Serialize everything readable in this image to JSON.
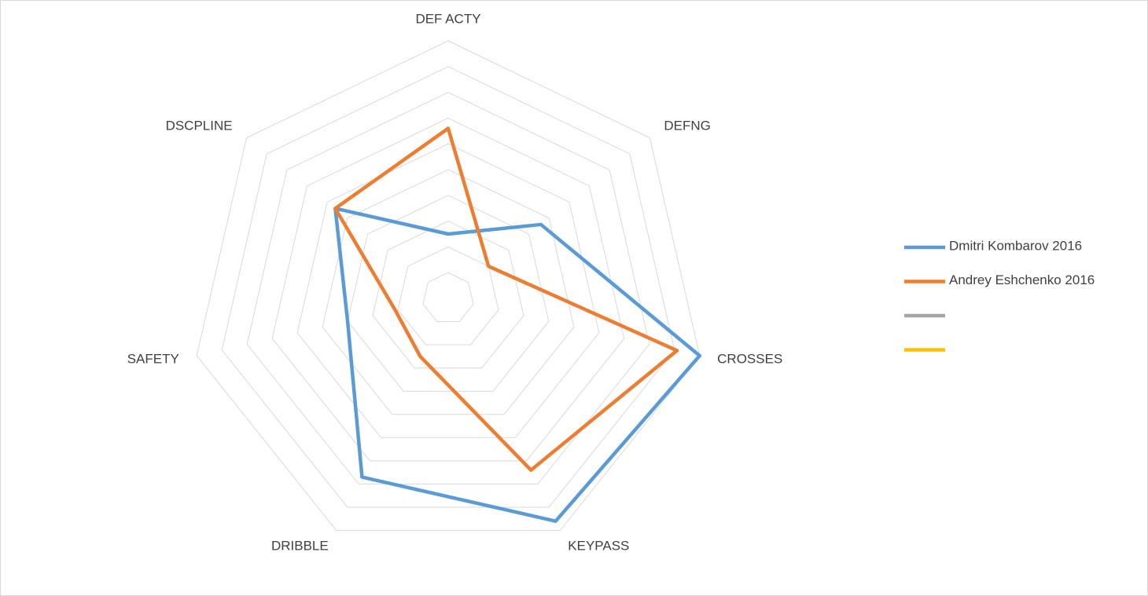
{
  "chart_data": {
    "type": "radar",
    "categories": [
      "DEF ACTY",
      "DEFNG",
      "CROSSES",
      "KEYPASS",
      "DRIBBLE",
      "SAFETY",
      "DSCPLINE"
    ],
    "series": [
      {
        "name": "Dmitri Kombarov 2016",
        "color": "#5b9bd5",
        "values": [
          2.5,
          4.6,
          10,
          9.6,
          7.7,
          4.0,
          5.6
        ]
      },
      {
        "name": "Andrey Eshchenko 2016",
        "color": "#ed7d31",
        "values": [
          6.6,
          2.0,
          9.1,
          7.4,
          2.5,
          2.1,
          5.6
        ]
      },
      {
        "color": "#a5a5a5"
      },
      {
        "color": "#ffc000"
      }
    ],
    "ylim": [
      0,
      10
    ],
    "yticks": [
      0,
      1,
      2,
      3,
      4,
      5,
      6,
      7,
      8,
      9,
      10
    ],
    "grid": true,
    "legend": "right"
  }
}
